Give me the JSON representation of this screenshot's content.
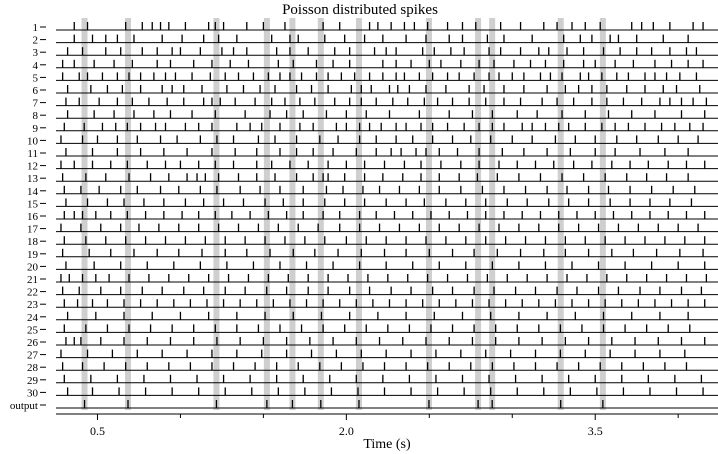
{
  "chart_data": {
    "type": "raster",
    "title": "Poisson distributed spikes",
    "xlabel": "Time (s)",
    "xlim": [
      0.25,
      4.24
    ],
    "x_ticks": [
      0.5,
      2.0,
      3.5
    ],
    "x_ticks_minor": [
      1.0,
      1.5,
      2.5,
      3.0,
      4.0
    ],
    "rows": [
      {
        "label": "1",
        "spikes": [
          0.36,
          0.44,
          0.67,
          0.77,
          0.83,
          0.88,
          0.93,
          1.03,
          1.17,
          1.21,
          1.26,
          1.4,
          1.5,
          1.63,
          1.86,
          1.96,
          2.14,
          2.19,
          2.27,
          2.35,
          2.41,
          2.49,
          2.61,
          2.7,
          2.78,
          2.93,
          3.05,
          3.19,
          3.27,
          3.36,
          3.44,
          3.53,
          3.72,
          3.78,
          3.85,
          3.95,
          4.09,
          4.15
        ]
      },
      {
        "label": "2",
        "spikes": [
          0.36,
          0.47,
          0.55,
          0.62,
          0.72,
          0.89,
          1.01,
          1.14,
          1.23,
          1.34,
          1.55,
          1.66,
          1.71,
          1.87,
          1.99,
          2.11,
          2.22,
          2.36,
          2.48,
          2.62,
          2.7,
          2.85,
          2.95,
          3.12,
          3.31,
          3.41,
          3.48,
          3.59,
          3.64,
          3.75,
          3.91,
          4.06
        ]
      },
      {
        "label": "3",
        "spikes": [
          0.32,
          0.41,
          0.55,
          0.64,
          0.77,
          0.86,
          0.95,
          1.0,
          1.12,
          1.25,
          1.32,
          1.4,
          1.58,
          1.66,
          1.77,
          1.93,
          2.02,
          2.17,
          2.24,
          2.3,
          2.46,
          2.53,
          2.63,
          2.71,
          2.86,
          2.93,
          3.05,
          3.16,
          3.22,
          3.33,
          3.43,
          3.55,
          3.65,
          3.75,
          3.84,
          3.95,
          4.05,
          4.11
        ]
      },
      {
        "label": "4",
        "spikes": [
          0.29,
          0.36,
          0.48,
          0.6,
          0.71,
          0.86,
          0.94,
          1.08,
          1.19,
          1.3,
          1.41,
          1.59,
          1.68,
          1.82,
          1.92,
          2.02,
          2.22,
          2.3,
          2.39,
          2.5,
          2.57,
          2.69,
          2.8,
          2.89,
          3.01,
          3.11,
          3.2,
          3.31,
          3.43,
          3.5,
          3.62,
          3.73,
          3.86,
          3.96,
          4.06,
          4.15
        ]
      },
      {
        "label": "5",
        "spikes": [
          0.29,
          0.39,
          0.44,
          0.53,
          0.62,
          0.69,
          0.76,
          0.84,
          0.91,
          0.97,
          1.07,
          1.18,
          1.27,
          1.35,
          1.44,
          1.53,
          1.6,
          1.66,
          1.73,
          1.82,
          1.89,
          1.97,
          2.05,
          2.14,
          2.22,
          2.3,
          2.35,
          2.44,
          2.52,
          2.61,
          2.68,
          2.77,
          2.86,
          2.92,
          3.0,
          3.07,
          3.17,
          3.23,
          3.3,
          3.41,
          3.46,
          3.54,
          3.63,
          3.7,
          3.8,
          3.86,
          3.93,
          4.01,
          4.11
        ]
      },
      {
        "label": "6",
        "spikes": [
          0.32,
          0.46,
          0.56,
          0.65,
          0.76,
          0.89,
          0.95,
          1.02,
          1.13,
          1.28,
          1.38,
          1.48,
          1.57,
          1.7,
          1.79,
          1.89,
          2.03,
          2.09,
          2.15,
          2.26,
          2.31,
          2.38,
          2.48,
          2.6,
          2.74,
          2.83,
          2.95,
          3.07,
          3.21,
          3.32,
          3.4,
          3.48,
          3.57,
          3.69,
          3.8,
          3.91,
          3.99,
          4.13
        ]
      },
      {
        "label": "7",
        "spikes": [
          0.31,
          0.39,
          0.51,
          0.62,
          0.71,
          0.81,
          0.92,
          1.02,
          1.14,
          1.19,
          1.24,
          1.33,
          1.45,
          1.55,
          1.63,
          1.72,
          1.81,
          1.93,
          2.02,
          2.09,
          2.18,
          2.28,
          2.37,
          2.47,
          2.55,
          2.64,
          2.74,
          2.84,
          2.95,
          3.05,
          3.18,
          3.27,
          3.37,
          3.48,
          3.57,
          3.67,
          3.78,
          3.89,
          3.95,
          4.02,
          4.09,
          4.17
        ]
      },
      {
        "label": "8",
        "spikes": [
          0.32,
          0.48,
          0.6,
          0.72,
          0.84,
          0.94,
          1.07,
          1.21,
          1.39,
          1.54,
          1.64,
          1.74,
          1.88,
          2.0,
          2.12,
          2.26,
          2.44,
          2.62,
          2.76,
          2.88,
          3.03,
          3.15,
          3.3,
          3.44,
          3.58,
          3.72,
          3.86,
          4.02,
          4.16
        ]
      },
      {
        "label": "9",
        "spikes": [
          0.3,
          0.42,
          0.53,
          0.61,
          0.68,
          0.76,
          0.85,
          0.91,
          1.03,
          1.11,
          1.19,
          1.34,
          1.42,
          1.49,
          1.6,
          1.72,
          1.8,
          1.94,
          2.0,
          2.08,
          2.14,
          2.21,
          2.3,
          2.36,
          2.45,
          2.52,
          2.61,
          2.71,
          2.8,
          2.88,
          2.95,
          3.06,
          3.12,
          3.2,
          3.28,
          3.34,
          3.44,
          3.54,
          3.62,
          3.7,
          3.8,
          3.9,
          3.98,
          4.07,
          4.15
        ]
      },
      {
        "label": "10",
        "spikes": [
          0.28,
          0.41,
          0.5,
          0.62,
          0.74,
          0.88,
          0.98,
          1.12,
          1.22,
          1.32,
          1.47,
          1.57,
          1.7,
          1.84,
          1.95,
          2.08,
          2.18,
          2.3,
          2.4,
          2.52,
          2.64,
          2.75,
          2.87,
          3.0,
          3.12,
          3.26,
          3.38,
          3.5,
          3.63,
          3.75,
          3.88,
          4.0,
          4.12
        ]
      },
      {
        "label": "11",
        "spikes": [
          0.31,
          0.47,
          0.62,
          0.76,
          0.9,
          1.04,
          1.19,
          1.33,
          1.46,
          1.6,
          1.7,
          1.8,
          1.92,
          2.06,
          2.18,
          2.27,
          2.33,
          2.42,
          2.48,
          2.56,
          2.67,
          2.8,
          2.94,
          3.07,
          3.21,
          3.35,
          3.5,
          3.62,
          3.77,
          3.92,
          4.06
        ]
      },
      {
        "label": "12",
        "spikes": [
          0.28,
          0.36,
          0.47,
          0.58,
          0.68,
          0.8,
          0.91,
          1.0,
          1.11,
          1.21,
          1.32,
          1.46,
          1.55,
          1.66,
          1.77,
          1.89,
          2.0,
          2.11,
          2.23,
          2.35,
          2.45,
          2.57,
          2.69,
          2.8,
          2.92,
          3.03,
          3.14,
          3.25,
          3.37,
          3.48,
          3.6,
          3.71,
          3.82,
          3.94,
          4.05,
          4.16
        ]
      },
      {
        "label": "13",
        "spikes": [
          0.29,
          0.43,
          0.55,
          0.69,
          0.82,
          0.93,
          1.04,
          1.1,
          1.15,
          1.23,
          1.35,
          1.46,
          1.57,
          1.7,
          1.8,
          1.86,
          1.89,
          1.99,
          2.11,
          2.22,
          2.34,
          2.45,
          2.56,
          2.68,
          2.79,
          2.91,
          3.04,
          3.17,
          3.3,
          3.43,
          3.56,
          3.69,
          3.81,
          3.93,
          4.06
        ]
      },
      {
        "label": "14",
        "spikes": [
          0.3,
          0.4,
          0.51,
          0.64,
          0.74,
          0.88,
          0.99,
          1.12,
          1.22,
          1.36,
          1.48,
          1.6,
          1.74,
          1.88,
          1.98,
          2.1,
          2.2,
          2.32,
          2.44,
          2.56,
          2.69,
          2.82,
          2.95,
          3.08,
          3.21,
          3.33,
          3.46,
          3.58,
          3.71,
          3.84,
          3.97,
          4.1
        ]
      },
      {
        "label": "15",
        "spikes": [
          0.31,
          0.44,
          0.56,
          0.66,
          0.78,
          0.9,
          1.03,
          1.14,
          1.26,
          1.38,
          1.51,
          1.62,
          1.74,
          1.87,
          1.99,
          2.11,
          2.24,
          2.36,
          2.47,
          2.6,
          2.72,
          2.84,
          2.97,
          3.09,
          3.22,
          3.34,
          3.46,
          3.59,
          3.71,
          3.83,
          3.95,
          4.08
        ]
      },
      {
        "label": "16",
        "spikes": [
          0.3,
          0.36,
          0.41,
          0.49,
          0.58,
          0.68,
          0.79,
          0.9,
          1.01,
          1.11,
          1.21,
          1.31,
          1.42,
          1.53,
          1.64,
          1.74,
          1.86,
          1.96,
          2.08,
          2.18,
          2.29,
          2.4,
          2.51,
          2.62,
          2.73,
          2.84,
          2.95,
          3.06,
          3.17,
          3.28,
          3.39,
          3.5,
          3.61,
          3.72,
          3.83,
          3.94,
          4.05,
          4.16
        ]
      },
      {
        "label": "17",
        "spikes": [
          0.28,
          0.4,
          0.52,
          0.64,
          0.75,
          0.87,
          0.99,
          1.11,
          1.23,
          1.35,
          1.47,
          1.59,
          1.71,
          1.83,
          1.96,
          2.08,
          2.2,
          2.32,
          2.44,
          2.56,
          2.68,
          2.8,
          2.92,
          3.04,
          3.16,
          3.28,
          3.4,
          3.52,
          3.64,
          3.76,
          3.88,
          4.0,
          4.12
        ]
      },
      {
        "label": "18",
        "spikes": [
          0.3,
          0.43,
          0.55,
          0.67,
          0.79,
          0.91,
          1.03,
          1.15,
          1.27,
          1.39,
          1.51,
          1.63,
          1.75,
          1.87,
          2.0,
          2.12,
          2.24,
          2.36,
          2.48,
          2.6,
          2.72,
          2.84,
          2.96,
          3.08,
          3.2,
          3.32,
          3.44,
          3.56,
          3.68,
          3.8,
          3.92,
          4.04,
          4.16
        ]
      },
      {
        "label": "19",
        "spikes": [
          0.29,
          0.45,
          0.58,
          0.72,
          0.86,
          0.99,
          1.13,
          1.27,
          1.4,
          1.54,
          1.68,
          1.81,
          1.95,
          2.09,
          2.23,
          2.36,
          2.5,
          2.64,
          2.77,
          2.91,
          3.05,
          3.19,
          3.32,
          3.46,
          3.6,
          3.73,
          3.87,
          4.01,
          4.15
        ]
      },
      {
        "label": "20",
        "spikes": [
          0.31,
          0.48,
          0.64,
          0.8,
          0.96,
          1.12,
          1.28,
          1.44,
          1.6,
          1.76,
          1.92,
          2.08,
          2.24,
          2.4,
          2.56,
          2.72,
          2.88,
          3.04,
          3.2,
          3.36,
          3.52,
          3.68,
          3.84,
          4.0,
          4.16
        ]
      },
      {
        "label": "21",
        "spikes": [
          0.28,
          0.33,
          0.41,
          0.49,
          0.57,
          0.69,
          0.81,
          0.93,
          1.05,
          1.17,
          1.29,
          1.41,
          1.53,
          1.65,
          1.77,
          1.89,
          2.01,
          2.13,
          2.25,
          2.37,
          2.49,
          2.61,
          2.73,
          2.85,
          2.97,
          3.09,
          3.21,
          3.33,
          3.45,
          3.57,
          3.69,
          3.81,
          3.93,
          4.05,
          4.17
        ]
      },
      {
        "label": "22",
        "spikes": [
          0.29,
          0.39,
          0.52,
          0.64,
          0.77,
          0.89,
          1.02,
          1.14,
          1.27,
          1.39,
          1.52,
          1.64,
          1.77,
          1.89,
          2.02,
          2.14,
          2.27,
          2.39,
          2.52,
          2.64,
          2.77,
          2.89,
          3.02,
          3.14,
          3.27,
          3.39,
          3.52,
          3.64,
          3.77,
          3.89,
          4.02,
          4.14
        ]
      },
      {
        "label": "23",
        "spikes": [
          0.3,
          0.38,
          0.47,
          0.56,
          0.66,
          0.76,
          0.86,
          0.96,
          1.06,
          1.16,
          1.26,
          1.36,
          1.46,
          1.56,
          1.66,
          1.76,
          1.86,
          1.96,
          2.06,
          2.16,
          2.26,
          2.36,
          2.46,
          2.56,
          2.66,
          2.76,
          2.86,
          2.96,
          3.06,
          3.16,
          3.26,
          3.36,
          3.46,
          3.56,
          3.66,
          3.76,
          3.86,
          3.96,
          4.06,
          4.16
        ]
      },
      {
        "label": "24",
        "spikes": [
          0.32,
          0.49,
          0.66,
          0.83,
          1.0,
          1.17,
          1.34,
          1.51,
          1.68,
          1.85,
          2.02,
          2.19,
          2.36,
          2.53,
          2.7,
          2.87,
          3.04,
          3.21,
          3.38,
          3.55,
          3.72,
          3.89,
          4.06
        ]
      },
      {
        "label": "25",
        "spikes": [
          0.3,
          0.43,
          0.56,
          0.69,
          0.82,
          0.95,
          1.08,
          1.21,
          1.34,
          1.47,
          1.6,
          1.73,
          1.86,
          1.99,
          2.12,
          2.25,
          2.38,
          2.51,
          2.64,
          2.77,
          2.9,
          3.03,
          3.16,
          3.29,
          3.42,
          3.55,
          3.68,
          3.81,
          3.94,
          4.07
        ]
      },
      {
        "label": "26",
        "spikes": [
          0.31,
          0.36,
          0.4,
          0.52,
          0.66,
          0.8,
          0.94,
          1.08,
          1.22,
          1.36,
          1.5,
          1.64,
          1.78,
          1.92,
          2.06,
          2.2,
          2.34,
          2.48,
          2.62,
          2.76,
          2.9,
          3.04,
          3.18,
          3.32,
          3.46,
          3.6,
          3.74,
          3.88,
          4.02,
          4.16
        ]
      },
      {
        "label": "27",
        "spikes": [
          0.28,
          0.44,
          0.59,
          0.74,
          0.89,
          1.04,
          1.19,
          1.34,
          1.49,
          1.64,
          1.79,
          1.94,
          2.09,
          2.24,
          2.39,
          2.54,
          2.69,
          2.84,
          2.99,
          3.14,
          3.29,
          3.44,
          3.59,
          3.74,
          3.89,
          4.04
        ]
      },
      {
        "label": "28",
        "spikes": [
          0.29,
          0.41,
          0.54,
          0.67,
          0.8,
          0.93,
          1.06,
          1.19,
          1.32,
          1.45,
          1.58,
          1.71,
          1.84,
          1.97,
          2.1,
          2.23,
          2.36,
          2.49,
          2.62,
          2.75,
          2.88,
          3.01,
          3.14,
          3.27,
          3.4,
          3.53,
          3.66,
          3.79,
          3.92,
          4.05
        ]
      },
      {
        "label": "29",
        "spikes": [
          0.3,
          0.46,
          0.62,
          0.78,
          0.94,
          1.1,
          1.26,
          1.42,
          1.58,
          1.74,
          1.9,
          2.06,
          2.22,
          2.38,
          2.54,
          2.7,
          2.86,
          3.02,
          3.18,
          3.34,
          3.5,
          3.66,
          3.82,
          3.98,
          4.14
        ]
      },
      {
        "label": "30",
        "spikes": [
          0.32,
          0.47,
          0.63,
          0.79,
          0.95,
          1.11,
          1.27,
          1.43,
          1.59,
          1.75,
          1.91,
          2.07,
          2.23,
          2.39,
          2.55,
          2.71,
          2.87,
          3.03,
          3.19,
          3.35,
          3.51,
          3.67,
          3.83,
          3.99,
          4.15
        ]
      }
    ],
    "output": {
      "label": "output",
      "spikes": [
        0.422,
        0.684,
        1.217,
        1.521,
        1.675,
        1.846,
        2.076,
        2.498,
        2.794,
        2.879,
        3.292,
        3.546
      ]
    },
    "band_color": "#cfcfcf",
    "spike_color": "#000000"
  }
}
